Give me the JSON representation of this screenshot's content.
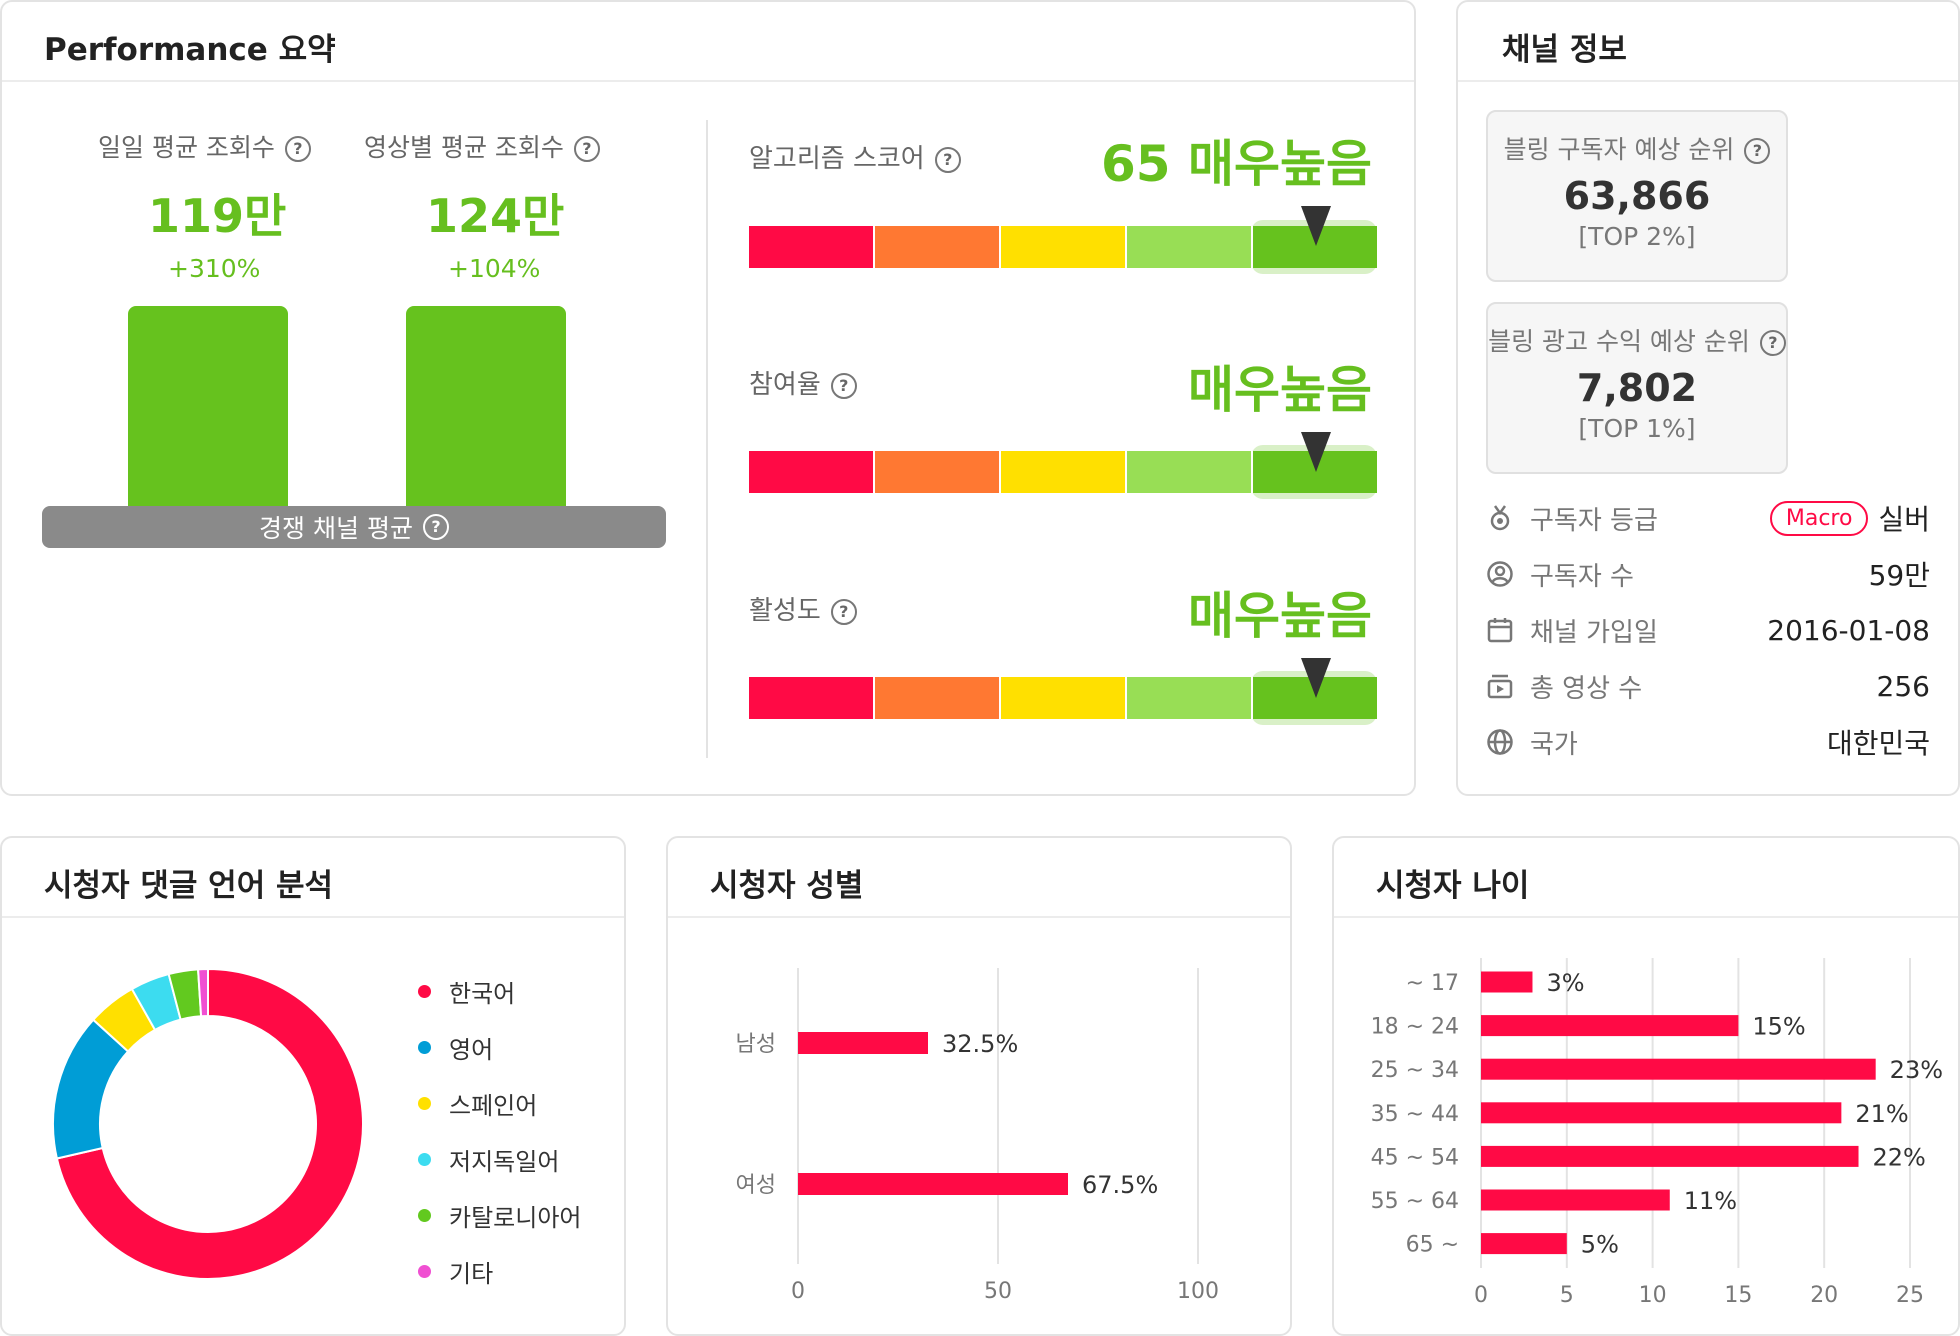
{
  "performance": {
    "title": "Performance 요약",
    "daily_avg_views": {
      "label": "일일 평균 조회수",
      "value": "119만",
      "change": "+310%",
      "bar_ratio": 1.0
    },
    "per_video_avg_views": {
      "label": "영상별 평균 조회수",
      "value": "124만",
      "change": "+104%",
      "bar_ratio": 1.0
    },
    "baseline_label": "경쟁 채널 평균",
    "help_glyph": "?",
    "scores": [
      {
        "label": "알고리즘 스코어",
        "value": "65 매우높음",
        "level": 5
      },
      {
        "label": "참여율",
        "value": "매우높음",
        "level": 5
      },
      {
        "label": "활성도",
        "value": "매우높음",
        "level": 5
      }
    ],
    "gauge_colors": [
      "#ff0a45",
      "#ff7832",
      "#ffe000",
      "#98de55",
      "#66c21e"
    ]
  },
  "channel_info": {
    "title": "채널 정보",
    "subscriber_rank": {
      "label": "블링 구독자 예상 순위",
      "value": "63,866",
      "top": "[TOP 2%]"
    },
    "ad_revenue_rank": {
      "label": "블링 광고 수익 예상 순위",
      "value": "7,802",
      "top": "[TOP 1%]"
    },
    "rows": [
      {
        "icon": "medal-icon",
        "label": "구독자 등급",
        "badge": "Macro",
        "value": "실버"
      },
      {
        "icon": "user-circle-icon",
        "label": "구독자 수",
        "value": "59만"
      },
      {
        "icon": "calendar-icon",
        "label": "채널 가입일",
        "value": "2016-01-08"
      },
      {
        "icon": "video-icon",
        "label": "총 영상 수",
        "value": "256"
      },
      {
        "icon": "globe-icon",
        "label": "국가",
        "value": "대한민국"
      }
    ]
  },
  "language": {
    "title": "시청자 댓글 언어 분석",
    "legend": [
      "한국어",
      "영어",
      "스페인어",
      "저지독일어",
      "카탈로니아어",
      "기타"
    ]
  },
  "gender": {
    "title": "시청자 성별"
  },
  "age": {
    "title": "시청자 나이"
  },
  "chart_data": [
    {
      "type": "pie",
      "title": "시청자 댓글 언어 분석",
      "categories": [
        "한국어",
        "영어",
        "스페인어",
        "저지독일어",
        "카탈로니아어",
        "기타"
      ],
      "values": [
        70,
        15,
        5,
        4,
        3,
        1
      ],
      "colors": [
        "#ff0a45",
        "#009dd6",
        "#ffe000",
        "#3cdcf0",
        "#62c91f",
        "#f050d2"
      ]
    },
    {
      "type": "bar",
      "orientation": "horizontal",
      "title": "시청자 성별",
      "categories": [
        "남성",
        "여성"
      ],
      "values": [
        32.5,
        67.5
      ],
      "value_labels": [
        "32.5%",
        "67.5%"
      ],
      "xlim": [
        0,
        100
      ],
      "xticks": [
        0,
        50,
        100
      ],
      "grid": true,
      "color": "#ff0a45"
    },
    {
      "type": "bar",
      "orientation": "horizontal",
      "title": "시청자 나이",
      "categories": [
        "~ 17",
        "18 ~ 24",
        "25 ~ 34",
        "35 ~ 44",
        "45 ~ 54",
        "55 ~ 64",
        "65 ~"
      ],
      "values": [
        3,
        15,
        23,
        21,
        22,
        11,
        5
      ],
      "value_labels": [
        "3%",
        "15%",
        "23%",
        "21%",
        "22%",
        "11%",
        "5%"
      ],
      "xlim": [
        0,
        25
      ],
      "xticks": [
        0,
        5,
        10,
        15,
        20,
        25
      ],
      "grid": true,
      "color": "#ff0a45"
    }
  ]
}
